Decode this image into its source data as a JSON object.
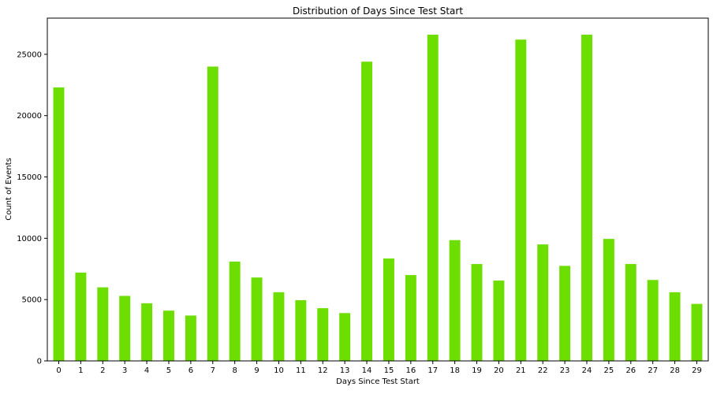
{
  "chart_data": {
    "type": "bar",
    "title": "Distribution of Days Since Test Start",
    "xlabel": "Days Since Test Start",
    "ylabel": "Count of Events",
    "categories": [
      "0",
      "1",
      "2",
      "3",
      "4",
      "5",
      "6",
      "7",
      "8",
      "9",
      "10",
      "11",
      "12",
      "13",
      "14",
      "15",
      "16",
      "17",
      "18",
      "19",
      "20",
      "21",
      "22",
      "23",
      "24",
      "25",
      "26",
      "27",
      "28",
      "29"
    ],
    "values": [
      22300,
      7200,
      6000,
      5300,
      4700,
      4100,
      3700,
      24000,
      8100,
      6800,
      5600,
      4950,
      4300,
      3900,
      24400,
      8350,
      7000,
      26600,
      9850,
      7900,
      6550,
      26200,
      9500,
      7750,
      26600,
      9950,
      7900,
      6600,
      5600,
      4650
    ],
    "yticks": [
      0,
      5000,
      10000,
      15000,
      20000,
      25000
    ],
    "ylim": [
      0,
      27950
    ],
    "bar_color": "#6ddf00",
    "grid": false,
    "legend": "none"
  }
}
